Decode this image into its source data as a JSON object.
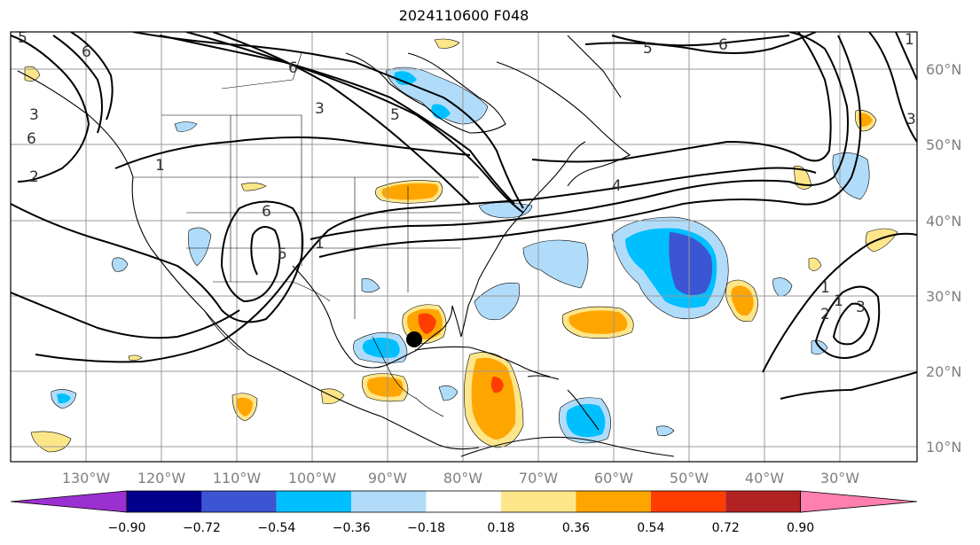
{
  "title": "2024110600 F048",
  "map": {
    "lon_labels": [
      "130°W",
      "120°W",
      "110°W",
      "100°W",
      "90°W",
      "80°W",
      "70°W",
      "60°W",
      "50°W",
      "40°W",
      "30°W"
    ],
    "lat_labels": [
      "60°N",
      "50°N",
      "40°N",
      "30°N",
      "20°N",
      "10°N"
    ],
    "marker": {
      "lon": -86,
      "lat": 24.3,
      "color": "#000000"
    },
    "contour_labels": [
      "5",
      "6",
      "3",
      "6",
      "6",
      "5",
      "1",
      "2",
      "3",
      "1",
      "6",
      "5",
      "1",
      "4",
      "1",
      "2",
      "3",
      "1",
      "5",
      "3",
      "6"
    ]
  },
  "colorbar": {
    "ticks": [
      "−0.90",
      "−0.72",
      "−0.54",
      "−0.36",
      "−0.18",
      "0.18",
      "0.36",
      "0.54",
      "0.72",
      "0.90"
    ],
    "colors": [
      "#9b30d0",
      "#00008b",
      "#3c55d2",
      "#00bfff",
      "#b0dcfa",
      "#ffffff",
      "#fde68a",
      "#ffa500",
      "#ff3d00",
      "#b22222",
      "#ff7faf"
    ]
  }
}
